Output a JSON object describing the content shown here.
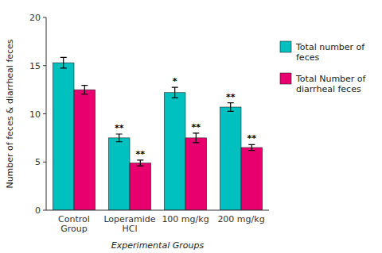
{
  "chart_data": {
    "type": "bar",
    "categories": [
      "Control Group",
      "Loperamide HCl",
      "100 mg/kg",
      "200 mg/kg"
    ],
    "series": [
      {
        "name": "Total number of feces",
        "color": "#00C0C0",
        "values": [
          15.3,
          7.5,
          12.2,
          10.7
        ],
        "errors": [
          0.55,
          0.4,
          0.55,
          0.45
        ],
        "annotations": [
          null,
          "**",
          "*",
          "**"
        ]
      },
      {
        "name": "Total Number of diarrheal feces",
        "color": "#E8006E",
        "values": [
          12.5,
          4.9,
          7.5,
          6.5
        ],
        "errors": [
          0.45,
          0.3,
          0.5,
          0.3
        ],
        "annotations": [
          null,
          "**",
          "**",
          "**"
        ]
      }
    ],
    "xlabel": "Experimental Groups",
    "ylabel": "Number of feces & diarrheal feces",
    "ylim": [
      0,
      20
    ],
    "yticks": [
      0,
      5,
      10,
      15,
      20
    ],
    "grid": false,
    "legend": "right"
  }
}
